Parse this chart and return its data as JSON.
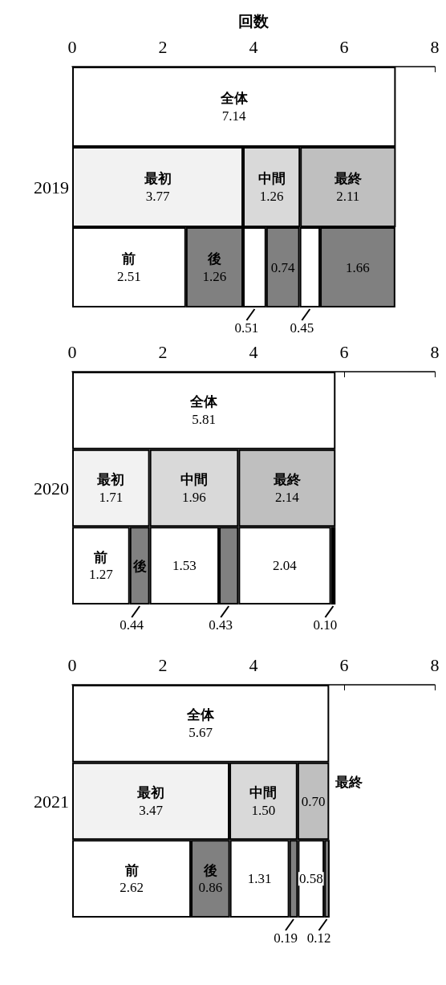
{
  "chart_data": [
    {
      "type": "bar",
      "orientation": "horizontal",
      "stacked": true,
      "xlabel": "回数",
      "categories": [
        null,
        "2019",
        null
      ],
      "xlim": [
        0,
        8
      ],
      "xticks": [
        0,
        2,
        4,
        6,
        8
      ],
      "series": [
        {
          "name": "全体",
          "color": "#ffffff",
          "values": [
            7.14,
            null,
            null
          ],
          "value_labels": [
            "7.14",
            null,
            null
          ]
        },
        {
          "name": "最初",
          "color": "#f2f2f2",
          "values": [
            null,
            3.77,
            null
          ],
          "value_labels": [
            null,
            "3.77",
            null
          ]
        },
        {
          "name": "中間",
          "color": "#d9d9d9",
          "values": [
            null,
            1.26,
            null
          ],
          "value_labels": [
            null,
            "1.26",
            null
          ]
        },
        {
          "name": "最終",
          "color": "#bfbfbf",
          "values": [
            null,
            2.11,
            null
          ],
          "value_labels": [
            null,
            "2.11",
            null
          ]
        },
        {
          "name": "前",
          "color": "#ffffff",
          "values": [
            null,
            null,
            2.51
          ],
          "value_labels": [
            null,
            null,
            "2.51"
          ]
        },
        {
          "name": "後",
          "color": "#808080",
          "values": [
            null,
            null,
            1.26
          ],
          "value_labels": [
            null,
            null,
            "1.26"
          ]
        },
        {
          "color": "#ffffff",
          "values": [
            null,
            null,
            0.51
          ],
          "value_labels": [
            null,
            null,
            "0.51"
          ]
        },
        {
          "color": "#808080",
          "values": [
            null,
            null,
            0.74
          ],
          "value_labels": [
            null,
            null,
            "0.74"
          ]
        },
        {
          "color": "#ffffff",
          "values": [
            null,
            null,
            0.45
          ],
          "value_labels": [
            null,
            null,
            "0.45"
          ]
        },
        {
          "color": "#808080",
          "values": [
            null,
            null,
            1.66
          ],
          "value_labels": [
            null,
            null,
            "1.66"
          ]
        }
      ]
    },
    {
      "type": "bar",
      "orientation": "horizontal",
      "stacked": true,
      "categories": [
        null,
        "2020",
        null
      ],
      "xlim": [
        0,
        8
      ],
      "xticks": [
        0,
        2,
        4,
        6,
        8
      ],
      "series": [
        {
          "name": "全体",
          "color": "#ffffff",
          "values": [
            5.81,
            null,
            null
          ],
          "value_labels": [
            "5.81",
            null,
            null
          ]
        },
        {
          "name": "最初",
          "color": "#f2f2f2",
          "values": [
            null,
            1.71,
            null
          ],
          "value_labels": [
            null,
            "1.71",
            null
          ]
        },
        {
          "name": "中間",
          "color": "#d9d9d9",
          "values": [
            null,
            1.96,
            null
          ],
          "value_labels": [
            null,
            "1.96",
            null
          ]
        },
        {
          "name": "最終",
          "color": "#bfbfbf",
          "values": [
            null,
            2.14,
            null
          ],
          "value_labels": [
            null,
            "2.14",
            null
          ]
        },
        {
          "name": "前",
          "color": "#ffffff",
          "values": [
            null,
            null,
            1.27
          ],
          "value_labels": [
            null,
            null,
            "1.27"
          ]
        },
        {
          "name": "後",
          "color": "#808080",
          "values": [
            null,
            null,
            0.44
          ],
          "value_labels": [
            null,
            null,
            "0.44"
          ]
        },
        {
          "color": "#ffffff",
          "values": [
            null,
            null,
            1.53
          ],
          "value_labels": [
            null,
            null,
            "1.53"
          ]
        },
        {
          "color": "#808080",
          "values": [
            null,
            null,
            0.43
          ],
          "value_labels": [
            null,
            null,
            "0.43"
          ]
        },
        {
          "color": "#ffffff",
          "values": [
            null,
            null,
            2.04
          ],
          "value_labels": [
            null,
            null,
            "2.04"
          ]
        },
        {
          "color": "#000000",
          "values": [
            null,
            null,
            0.1
          ],
          "value_labels": [
            null,
            null,
            "0.10"
          ]
        }
      ]
    },
    {
      "type": "bar",
      "orientation": "horizontal",
      "stacked": true,
      "categories": [
        null,
        "2021",
        null
      ],
      "xlim": [
        0,
        8
      ],
      "xticks": [
        0,
        2,
        4,
        6,
        8
      ],
      "series": [
        {
          "name": "全体",
          "color": "#ffffff",
          "values": [
            5.67,
            null,
            null
          ],
          "value_labels": [
            "5.67",
            null,
            null
          ]
        },
        {
          "name": "最初",
          "color": "#f2f2f2",
          "values": [
            null,
            3.47,
            null
          ],
          "value_labels": [
            null,
            "3.47",
            null
          ]
        },
        {
          "name": "中間",
          "color": "#d9d9d9",
          "values": [
            null,
            1.5,
            null
          ],
          "value_labels": [
            null,
            "1.50",
            null
          ]
        },
        {
          "name": "最終",
          "color": "#bfbfbf",
          "values": [
            null,
            0.7,
            null
          ],
          "value_labels": [
            null,
            "0.70",
            null
          ]
        },
        {
          "name": "前",
          "color": "#ffffff",
          "values": [
            null,
            null,
            2.62
          ],
          "value_labels": [
            null,
            null,
            "2.62"
          ]
        },
        {
          "name": "後",
          "color": "#808080",
          "values": [
            null,
            null,
            0.86
          ],
          "value_labels": [
            null,
            null,
            "0.86"
          ]
        },
        {
          "color": "#ffffff",
          "values": [
            null,
            null,
            1.31
          ],
          "value_labels": [
            null,
            null,
            "1.31"
          ]
        },
        {
          "color": "#808080",
          "values": [
            null,
            null,
            0.19
          ],
          "value_labels": [
            null,
            null,
            "0.19"
          ]
        },
        {
          "color": "#ffffff",
          "values": [
            null,
            null,
            0.58
          ],
          "value_labels": [
            null,
            null,
            "0.58"
          ]
        },
        {
          "color": "#808080",
          "values": [
            null,
            null,
            0.12
          ],
          "value_labels": [
            null,
            null,
            "0.12"
          ]
        }
      ]
    }
  ]
}
